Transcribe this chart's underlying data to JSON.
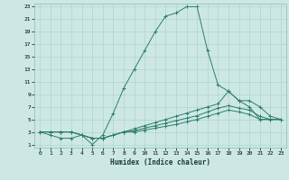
{
  "xlabel": "Humidex (Indice chaleur)",
  "background_color": "#cde8e4",
  "grid_color": "#b0d4cc",
  "line_color": "#2e7d6e",
  "xlim": [
    -0.5,
    23.5
  ],
  "ylim": [
    0.5,
    23.5
  ],
  "xticks": [
    0,
    1,
    2,
    3,
    4,
    5,
    6,
    7,
    8,
    9,
    10,
    11,
    12,
    13,
    14,
    15,
    16,
    17,
    18,
    19,
    20,
    21,
    22,
    23
  ],
  "yticks": [
    1,
    3,
    5,
    7,
    9,
    11,
    13,
    15,
    17,
    19,
    21,
    23
  ],
  "lines": [
    {
      "x": [
        0,
        1,
        2,
        3,
        4,
        5,
        6,
        7,
        8,
        9,
        10,
        11,
        12,
        13,
        14,
        15,
        16,
        17,
        18,
        19,
        20,
        21,
        22,
        23
      ],
      "y": [
        3,
        2.5,
        2,
        2,
        2.5,
        1,
        2.5,
        6,
        10,
        13,
        16,
        19,
        21.5,
        22,
        23,
        23,
        16,
        10.5,
        9.5,
        8,
        7,
        5,
        5,
        5
      ]
    },
    {
      "x": [
        0,
        1,
        2,
        3,
        4,
        5,
        6,
        7,
        8,
        9,
        10,
        11,
        12,
        13,
        14,
        15,
        16,
        17,
        18,
        19,
        20,
        21,
        22,
        23
      ],
      "y": [
        3,
        3,
        3,
        3,
        2.5,
        2,
        2,
        2.5,
        3,
        3.5,
        4,
        4.5,
        5,
        5.5,
        6,
        6.5,
        7,
        7.5,
        9.5,
        8,
        8,
        7,
        5.5,
        5
      ]
    },
    {
      "x": [
        0,
        1,
        2,
        3,
        4,
        5,
        6,
        7,
        8,
        9,
        10,
        11,
        12,
        13,
        14,
        15,
        16,
        17,
        18,
        19,
        20,
        21,
        22,
        23
      ],
      "y": [
        3,
        3,
        3,
        3,
        2.5,
        2,
        2,
        2.5,
        3,
        3.2,
        3.6,
        4,
        4.4,
        4.8,
        5.2,
        5.6,
        6.2,
        6.8,
        7.2,
        6.8,
        6.5,
        5.5,
        5,
        5
      ]
    },
    {
      "x": [
        0,
        1,
        2,
        3,
        4,
        5,
        6,
        7,
        8,
        9,
        10,
        11,
        12,
        13,
        14,
        15,
        16,
        17,
        18,
        19,
        20,
        21,
        22,
        23
      ],
      "y": [
        3,
        3,
        3,
        3,
        2.5,
        2,
        2,
        2.5,
        3,
        3,
        3.3,
        3.6,
        3.9,
        4.2,
        4.6,
        5,
        5.5,
        6,
        6.5,
        6.2,
        5.8,
        5,
        5,
        5
      ]
    }
  ]
}
